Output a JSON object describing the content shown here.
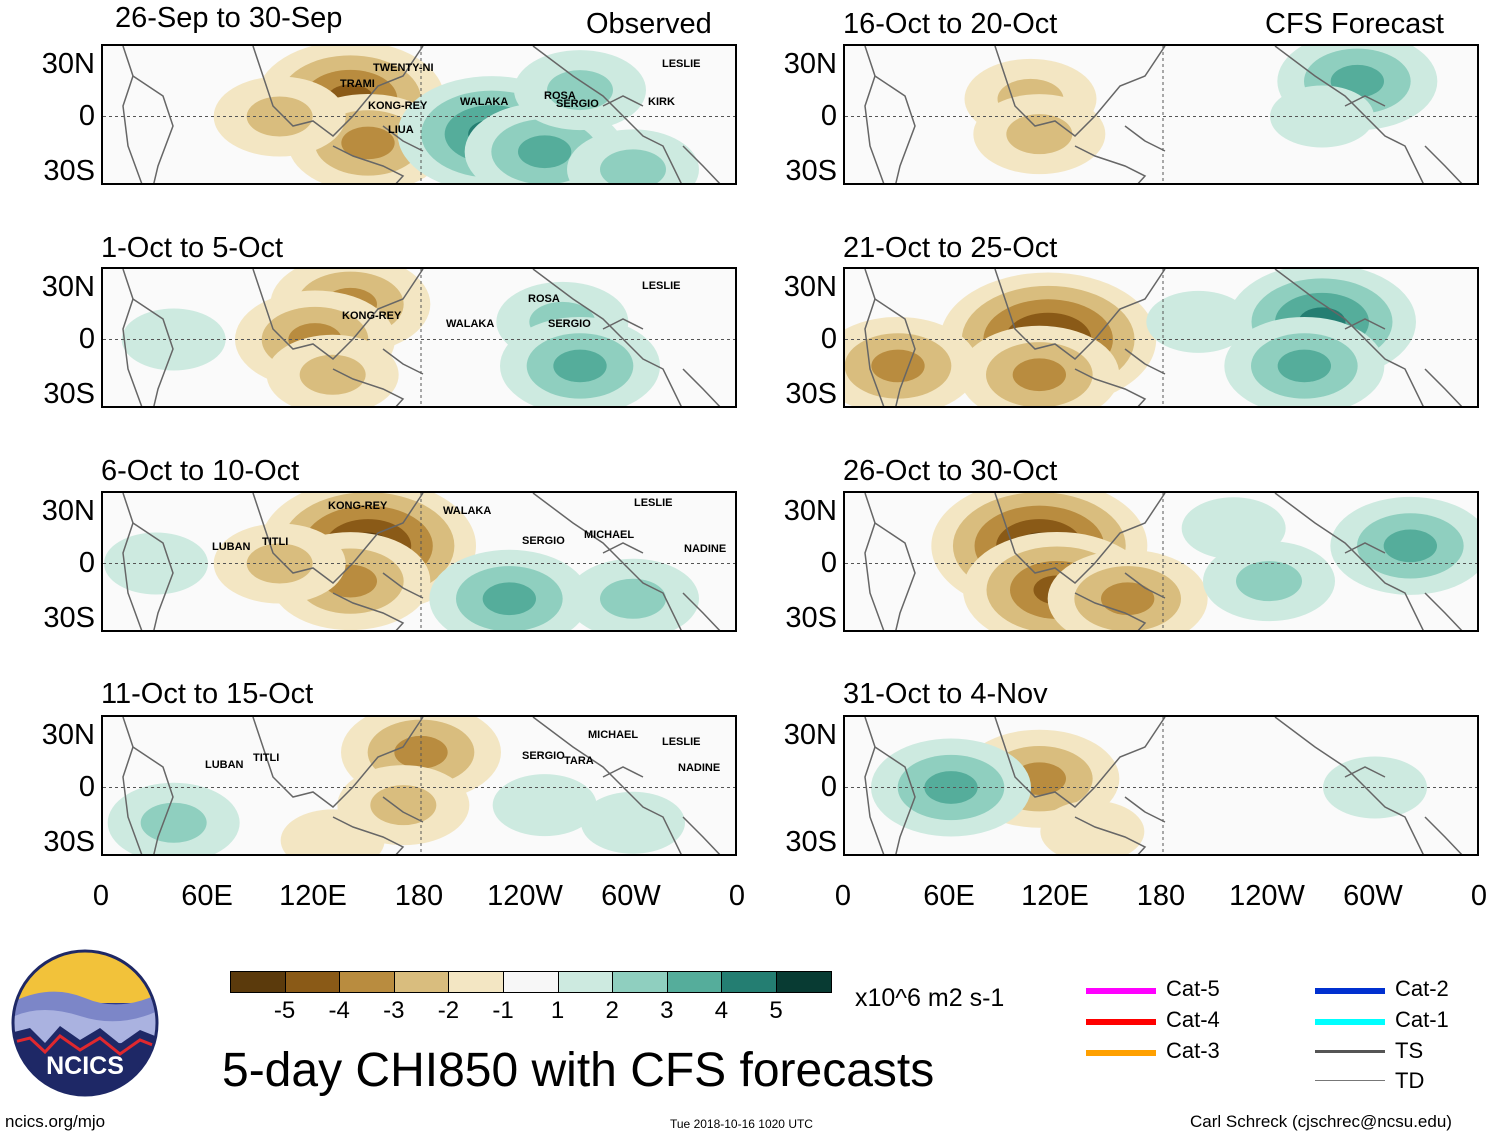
{
  "title": "5-day CHI850 with CFS forecasts",
  "site": "ncics.org/mjo",
  "timestamp": "Tue 2018-10-16 1020 UTC",
  "author": "Carl Schreck (cjschrec@ncsu.edu)",
  "logo_text": "NCICS",
  "column_labels": {
    "observed": "Observed",
    "forecast": "CFS Forecast"
  },
  "units": "x10^6 m2 s-1",
  "chart_data": [
    {
      "type": "heatmap",
      "title": "26-Sep to 30-Sep",
      "category": "Observed",
      "lat_labels": [
        "30N",
        "0",
        "30S"
      ],
      "storms": [
        "TRAMI",
        "TWENTY-NI",
        "KONG-REY",
        "LIUA",
        "WALAKA",
        "ROSA",
        "SERGIO",
        "LESLIE",
        "KIRK"
      ],
      "anomalies": [
        {
          "lon": 140,
          "lat": 10,
          "value": -4
        },
        {
          "lon": 150,
          "lat": -15,
          "value": -3
        },
        {
          "lon": 100,
          "lat": 0,
          "value": -2
        },
        {
          "lon": 220,
          "lat": -10,
          "value": 4
        },
        {
          "lon": 250,
          "lat": -20,
          "value": 3
        },
        {
          "lon": 270,
          "lat": 15,
          "value": 2
        },
        {
          "lon": 300,
          "lat": -30,
          "value": 2
        }
      ]
    },
    {
      "type": "heatmap",
      "title": "16-Oct to 20-Oct",
      "category": "CFS Forecast",
      "lat_labels": [
        "30N",
        "0",
        "30S"
      ],
      "storms": [],
      "anomalies": [
        {
          "lon": 105,
          "lat": 10,
          "value": -2
        },
        {
          "lon": 110,
          "lat": -10,
          "value": -2
        },
        {
          "lon": 290,
          "lat": 20,
          "value": 3
        },
        {
          "lon": 270,
          "lat": 0,
          "value": 1
        }
      ]
    },
    {
      "type": "heatmap",
      "title": "1-Oct to 5-Oct",
      "category": "Observed",
      "lat_labels": [
        "30N",
        "0",
        "30S"
      ],
      "storms": [
        "KONG-REY",
        "WALAKA",
        "ROSA",
        "SERGIO",
        "LESLIE"
      ],
      "anomalies": [
        {
          "lon": 140,
          "lat": 20,
          "value": -3
        },
        {
          "lon": 120,
          "lat": 0,
          "value": -3
        },
        {
          "lon": 130,
          "lat": -20,
          "value": -2
        },
        {
          "lon": 260,
          "lat": 10,
          "value": 2
        },
        {
          "lon": 270,
          "lat": -15,
          "value": 3
        },
        {
          "lon": 40,
          "lat": 0,
          "value": 1
        }
      ]
    },
    {
      "type": "heatmap",
      "title": "21-Oct to 25-Oct",
      "category": "CFS Forecast",
      "lat_labels": [
        "30N",
        "0",
        "30S"
      ],
      "storms": [],
      "anomalies": [
        {
          "lon": 115,
          "lat": 0,
          "value": -5
        },
        {
          "lon": 110,
          "lat": -20,
          "value": -3
        },
        {
          "lon": 30,
          "lat": -15,
          "value": -3
        },
        {
          "lon": 270,
          "lat": 10,
          "value": 4
        },
        {
          "lon": 260,
          "lat": -15,
          "value": 3
        },
        {
          "lon": 200,
          "lat": 10,
          "value": 1
        }
      ]
    },
    {
      "type": "heatmap",
      "title": "6-Oct to 10-Oct",
      "category": "Observed",
      "lat_labels": [
        "30N",
        "0",
        "30S"
      ],
      "storms": [
        "LUBAN",
        "TITLI",
        "KONG-REY",
        "WALAKA",
        "SERGIO",
        "MICHAEL",
        "LESLIE",
        "NADINE"
      ],
      "anomalies": [
        {
          "lon": 150,
          "lat": 10,
          "value": -5
        },
        {
          "lon": 140,
          "lat": -10,
          "value": -3
        },
        {
          "lon": 100,
          "lat": 0,
          "value": -2
        },
        {
          "lon": 230,
          "lat": -20,
          "value": 3
        },
        {
          "lon": 300,
          "lat": -20,
          "value": 2
        },
        {
          "lon": 30,
          "lat": 0,
          "value": 1
        }
      ]
    },
    {
      "type": "heatmap",
      "title": "26-Oct to 30-Oct",
      "category": "CFS Forecast",
      "lat_labels": [
        "30N",
        "0",
        "30S"
      ],
      "storms": [],
      "anomalies": [
        {
          "lon": 110,
          "lat": 10,
          "value": -5
        },
        {
          "lon": 120,
          "lat": -15,
          "value": -4
        },
        {
          "lon": 160,
          "lat": -20,
          "value": -3
        },
        {
          "lon": 320,
          "lat": 10,
          "value": 3
        },
        {
          "lon": 240,
          "lat": -10,
          "value": 2
        },
        {
          "lon": 220,
          "lat": 20,
          "value": 1
        }
      ]
    },
    {
      "type": "heatmap",
      "title": "11-Oct to 15-Oct",
      "category": "Observed",
      "lat_labels": [
        "30N",
        "0",
        "30S"
      ],
      "storms": [
        "LUBAN",
        "TITLI",
        "SERGIO",
        "TARA",
        "MICHAEL",
        "LESLIE",
        "NADINE"
      ],
      "anomalies": [
        {
          "lon": 180,
          "lat": 20,
          "value": -3
        },
        {
          "lon": 170,
          "lat": -10,
          "value": -2
        },
        {
          "lon": 130,
          "lat": -30,
          "value": -1
        },
        {
          "lon": 40,
          "lat": -20,
          "value": 2
        },
        {
          "lon": 300,
          "lat": -20,
          "value": 1
        },
        {
          "lon": 250,
          "lat": -10,
          "value": 1
        }
      ]
    },
    {
      "type": "heatmap",
      "title": "31-Oct to 4-Nov",
      "category": "CFS Forecast",
      "lat_labels": [
        "30N",
        "0",
        "30S"
      ],
      "storms": [],
      "anomalies": [
        {
          "lon": 110,
          "lat": 5,
          "value": -3
        },
        {
          "lon": 140,
          "lat": -25,
          "value": -1
        },
        {
          "lon": 60,
          "lat": 0,
          "value": 3
        },
        {
          "lon": 300,
          "lat": 0,
          "value": 1
        }
      ]
    }
  ],
  "lon_labels": [
    "0",
    "60E",
    "120E",
    "180",
    "120W",
    "60W",
    "0"
  ],
  "colorbar": {
    "colors": [
      "#5b3a0c",
      "#8a5a17",
      "#b98c3f",
      "#d9bd7e",
      "#f3e6c3",
      "#f7f7f7",
      "#cdeae0",
      "#8fcfbf",
      "#55ad9b",
      "#247e72",
      "#083b33"
    ],
    "ticks": [
      "-5",
      "-4",
      "-3",
      "-2",
      "-1",
      "1",
      "2",
      "3",
      "4",
      "5"
    ]
  },
  "track_legend": [
    {
      "label": "Cat-5",
      "color": "#ff00ff"
    },
    {
      "label": "Cat-4",
      "color": "#ff0000"
    },
    {
      "label": "Cat-3",
      "color": "#ffa000"
    },
    {
      "label": "Cat-2",
      "color": "#0030d0"
    },
    {
      "label": "Cat-1",
      "color": "#00ffff"
    },
    {
      "label": "TS",
      "color": "#555555"
    },
    {
      "label": "TD",
      "color": "#777777"
    }
  ]
}
